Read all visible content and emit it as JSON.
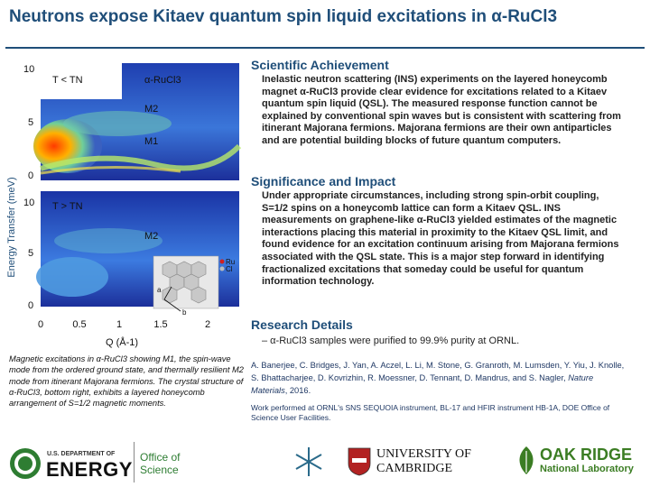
{
  "title": "Neutrons expose Kitaev quantum spin liquid excitations in α-RuCl3",
  "achievement": {
    "heading": "Scientific Achievement",
    "body": "Inelastic neutron scattering (INS) experiments on the layered honeycomb magnet α-RuCl3 provide clear evidence for excitations related to a Kitaev quantum spin liquid (QSL). The measured response function cannot be explained by conventional spin waves but is consistent with scattering from itinerant Majorana fermions. Majorana fermions are their own antiparticles and are potential building blocks of future quantum computers."
  },
  "significance": {
    "heading": "Significance and Impact",
    "body": "Under appropriate circumstances, including strong spin-orbit coupling, S=1/2 spins on a honeycomb lattice can form a Kitaev QSL. INS measurements on graphene-like α-RuCl3 yielded estimates of the magnetic interactions placing this material in proximity to the Kitaev QSL limit, and found evidence for an excitation continuum arising from Majorana fermions associated with the QSL state. This is a major step forward in identifying fractionalized excitations that someday could be useful for quantum information technology."
  },
  "research": {
    "heading": "Research Details",
    "bullet": "– α-RuCl3 samples were purified to 99.9% purity at ORNL.",
    "citation_authors": "A. Banerjee, C. Bridges, J. Yan, A. Aczel, L. Li, M. Stone, G. Granroth, M. Lumsden, Y. Yiu, J. Knolle, S. Bhattacharjee, D. Kovrizhin, R. Moessner, D. Tennant, D. Mandrus, and S. Nagler, ",
    "citation_journal": "Nature Materials",
    "citation_year": ", 2016.",
    "work": "Work performed at ORNL's SNS SEQUOIA instrument, BL-17 and HFIR instrument HB-1A, DOE Office of Science User Facilities."
  },
  "figure": {
    "ylabel": "Energy Transfer (meV)",
    "xlabel": "Q (Å-1)",
    "yticks_top": [
      "10",
      "5",
      "0"
    ],
    "yticks_bottom": [
      "10",
      "5",
      "0"
    ],
    "xticks": [
      "0",
      "0.5",
      "1",
      "1.5",
      "2"
    ],
    "top_label_temp": "T < TN",
    "top_label_material": "α-RuCl3",
    "top_label_m2": "M2",
    "top_label_m1": "M1",
    "bottom_label_temp": "T > TN",
    "bottom_label_m2": "M2",
    "inset_ru": "Ru",
    "inset_cl": "Cl",
    "inset_a": "a",
    "inset_b": "b",
    "caption": "Magnetic excitations in α-RuCl3 showing M1, the spin-wave mode from the ordered ground state, and thermally resilient M2 mode from itinerant Majorana fermions. The crystal structure of α-RuCl3, bottom right, exhibits a layered honeycomb arrangement of S=1/2 magnetic moments."
  },
  "footer": {
    "doe_line1": "U.S. DEPARTMENT OF",
    "doe_line2": "ENERGY",
    "office_line1": "Office of",
    "office_line2": "Science",
    "cambridge_line1": "UNIVERSITY OF",
    "cambridge_line2": "CAMBRIDGE",
    "ornl_line1": "OAK RIDGE",
    "ornl_line2": "National Laboratory"
  },
  "colors": {
    "title_blue": "#1f4e79",
    "doe_green": "#2e7d32",
    "ornl_green": "#3b7d23"
  }
}
